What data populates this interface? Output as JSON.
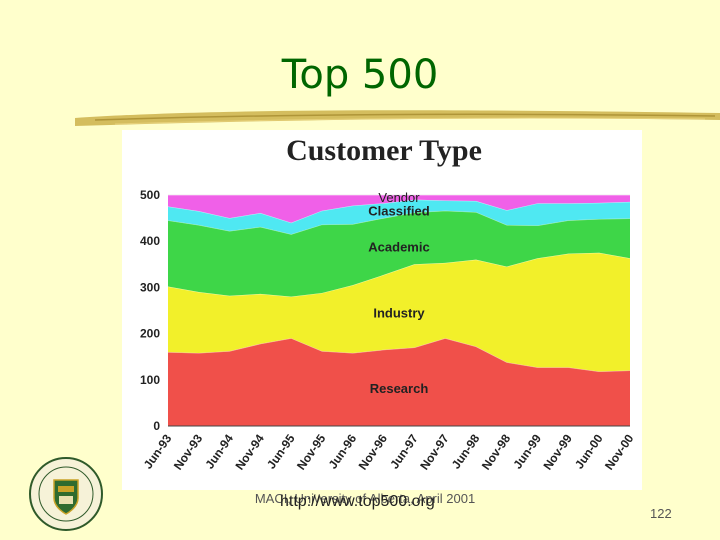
{
  "slide": {
    "title": "Top 500",
    "footer_source": "MACI, University of Alberta, April 2001",
    "url": "http://www.top500.org",
    "page_number": "122"
  },
  "colors": {
    "background": "#ffffcc",
    "title": "#006600",
    "Research": "#f0504a",
    "Industry": "#f2f02a",
    "Academic": "#3ed648",
    "Classified": "#4fe8f2",
    "Vendor": "#f060e8"
  },
  "chart_data": {
    "type": "area",
    "stacked": true,
    "title": "Customer Type",
    "ylim": [
      0,
      500
    ],
    "yticks": [
      0,
      100,
      200,
      300,
      400,
      500
    ],
    "x": [
      "Jun-93",
      "Nov-93",
      "Jun-94",
      "Nov-94",
      "Jun-95",
      "Nov-95",
      "Jun-96",
      "Nov-96",
      "Jun-97",
      "Nov-97",
      "Jun-98",
      "Nov-98",
      "Jun-99",
      "Nov-99",
      "Jun-00",
      "Nov-00"
    ],
    "series": [
      {
        "name": "Research",
        "values": [
          160,
          158,
          162,
          178,
          190,
          162,
          158,
          165,
          170,
          190,
          172,
          138,
          127,
          127,
          118,
          120
        ]
      },
      {
        "name": "Industry",
        "values": [
          142,
          132,
          120,
          108,
          90,
          126,
          147,
          162,
          180,
          163,
          188,
          207,
          236,
          246,
          257,
          243
        ]
      },
      {
        "name": "Academic",
        "values": [
          143,
          145,
          140,
          145,
          135,
          148,
          132,
          123,
          112,
          113,
          103,
          90,
          71,
          72,
          73,
          86
        ]
      },
      {
        "name": "Classified",
        "values": [
          30,
          30,
          28,
          30,
          25,
          30,
          40,
          32,
          28,
          22,
          24,
          32,
          48,
          37,
          35,
          36
        ]
      },
      {
        "name": "Vendor",
        "values": [
          25,
          35,
          50,
          39,
          60,
          34,
          23,
          18,
          10,
          12,
          13,
          33,
          18,
          18,
          17,
          15
        ]
      }
    ]
  }
}
